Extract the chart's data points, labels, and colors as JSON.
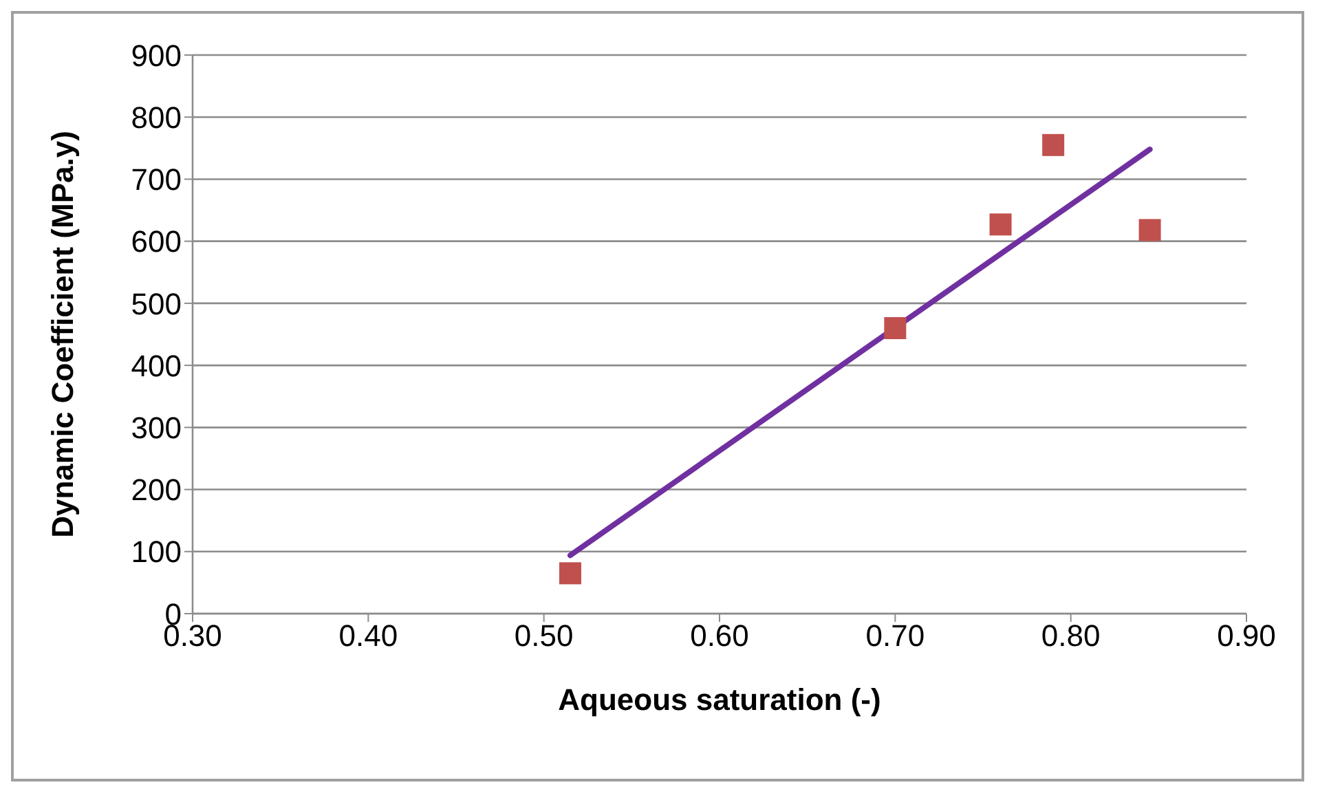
{
  "chart_data": {
    "type": "scatter",
    "xlabel": "Aqueous saturation (-)",
    "ylabel": "Dynamic Coefficient (MPa.y)",
    "xlim": [
      0.3,
      0.9
    ],
    "xticks": [
      {
        "value": 0.3,
        "label": "0.30"
      },
      {
        "value": 0.4,
        "label": "0.40"
      },
      {
        "value": 0.5,
        "label": "0.50"
      },
      {
        "value": 0.6,
        "label": "0.60"
      },
      {
        "value": 0.7,
        "label": "0.70"
      },
      {
        "value": 0.8,
        "label": "0.80"
      },
      {
        "value": 0.9,
        "label": "0.90"
      }
    ],
    "ylim": [
      0,
      900
    ],
    "yticks": [
      0,
      100,
      200,
      300,
      400,
      500,
      600,
      700,
      800,
      900
    ],
    "grid": "y",
    "series": [
      {
        "color": "#c0504d",
        "marker": "square",
        "x": [
          0.515,
          0.7,
          0.76,
          0.79,
          0.845
        ],
        "values": [
          65,
          460,
          627,
          755,
          618
        ]
      },
      {
        "type": "line",
        "color": "#7030a0",
        "marker": "none",
        "x": [
          0.515,
          0.845
        ],
        "values": [
          94,
          748
        ]
      }
    ]
  }
}
